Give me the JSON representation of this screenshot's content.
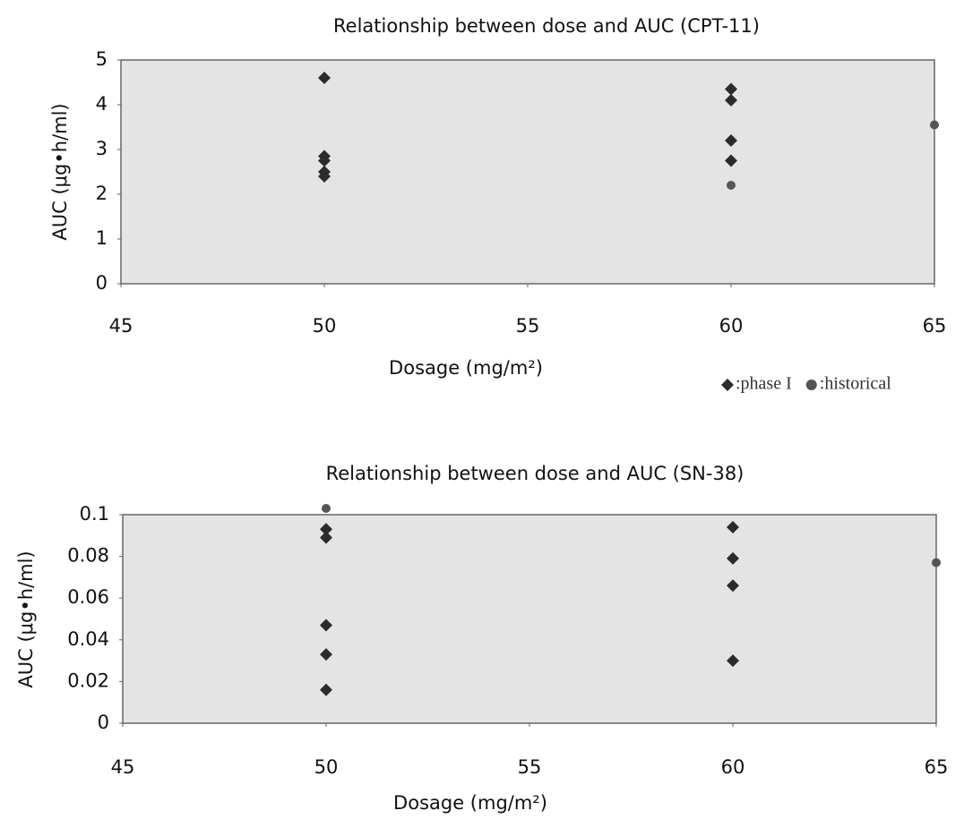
{
  "chart_data": [
    {
      "type": "scatter",
      "title": "Relationship between dose and AUC (CPT-11)",
      "x_label": "Dosage (mg/m²)",
      "y_label": "AUC (μg•h/ml)",
      "xlim": [
        45,
        65
      ],
      "xticks": [
        45,
        50,
        55,
        60,
        65
      ],
      "ylim": [
        0,
        5
      ],
      "yticks": [
        0,
        1,
        2,
        3,
        4,
        5
      ],
      "legend": "below-right",
      "series": [
        {
          "name": ":phase I",
          "marker": "diamond",
          "color": "#2b2b2b",
          "x": [
            50,
            50,
            50,
            50,
            50,
            60,
            60,
            60,
            60
          ],
          "values": [
            4.6,
            2.85,
            2.75,
            2.5,
            2.4,
            4.35,
            4.1,
            3.2,
            2.75
          ]
        },
        {
          "name": ":historical",
          "marker": "circle",
          "color": "#555555",
          "x": [
            60,
            65
          ],
          "values": [
            2.2,
            3.55
          ]
        }
      ]
    },
    {
      "type": "scatter",
      "title": "Relationship between dose and AUC (SN-38)",
      "x_label": "Dosage (mg/m²)",
      "y_label": "AUC (μg•h/ml)",
      "xlim": [
        45,
        65
      ],
      "xticks": [
        45,
        50,
        55,
        60,
        65
      ],
      "ylim": [
        0,
        0.1
      ],
      "yticks": [
        0,
        0.02,
        0.04,
        0.06,
        0.08,
        0.1
      ],
      "series": [
        {
          "marker": "diamond",
          "color": "#2b2b2b",
          "x": [
            50,
            50,
            50,
            50,
            50,
            60,
            60,
            60,
            60
          ],
          "values": [
            0.093,
            0.089,
            0.047,
            0.033,
            0.016,
            0.094,
            0.079,
            0.066,
            0.03
          ]
        },
        {
          "marker": "circle",
          "color": "#555555",
          "x": [
            50,
            65
          ],
          "values": [
            0.103,
            0.077
          ]
        }
      ]
    }
  ]
}
